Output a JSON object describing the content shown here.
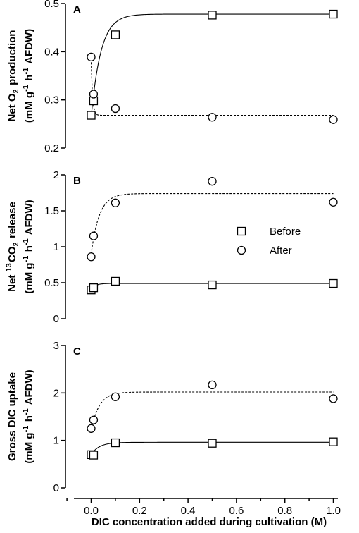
{
  "chart_data": [
    {
      "type": "scatter",
      "panel_label": "A",
      "ylabel_lines": [
        "Net O2 production",
        "(mM g-1 h-1 AFDW)"
      ],
      "ylim": [
        0.2,
        0.5
      ],
      "yticks": [
        0.2,
        0.3,
        0.4,
        0.5
      ],
      "ytick_labels": [
        "0.2",
        "0.3",
        "0.4",
        "0.5"
      ],
      "xlim": [
        -0.1,
        1.05
      ],
      "series": [
        {
          "name": "Before",
          "marker": "square",
          "line": "solid",
          "x": [
            0,
            0.01,
            0.1,
            0.5,
            1.0
          ],
          "y": [
            0.268,
            0.298,
            0.435,
            0.476,
            0.478
          ],
          "fit": {
            "a": 0.478,
            "b": 0.214,
            "k": 25
          }
        },
        {
          "name": "After",
          "marker": "circle",
          "line": "dashed",
          "x": [
            0,
            0.01,
            0.1,
            0.5,
            1.0
          ],
          "y": [
            0.389,
            0.312,
            0.282,
            0.264,
            0.259
          ],
          "fit": {
            "a": 0.268,
            "b": -0.11,
            "k": 180
          }
        }
      ]
    },
    {
      "type": "scatter",
      "panel_label": "B",
      "ylabel_lines": [
        "Net 13CO2 release",
        "(mM g-1 h-1 AFDW)"
      ],
      "ylim": [
        0,
        2
      ],
      "yticks": [
        0,
        0.5,
        1,
        1.5,
        2
      ],
      "ytick_labels": [
        "0",
        "0.5",
        "1",
        "1.5",
        "2"
      ],
      "xlim": [
        -0.1,
        1.05
      ],
      "series": [
        {
          "name": "Before",
          "marker": "square",
          "line": "solid",
          "x": [
            0,
            0.01,
            0.1,
            0.5,
            1.0
          ],
          "y": [
            0.4,
            0.43,
            0.52,
            0.47,
            0.49
          ],
          "fit": {
            "a": 0.49,
            "b": 0.09,
            "k": 60
          }
        },
        {
          "name": "After",
          "marker": "circle",
          "line": "dashed",
          "x": [
            0,
            0.01,
            0.1,
            0.5,
            1.0
          ],
          "y": [
            0.86,
            1.15,
            1.61,
            1.91,
            1.62
          ],
          "fit": {
            "a": 1.74,
            "b": 0.84,
            "k": 30
          }
        }
      ],
      "legend": {
        "position": "center-right",
        "entries": [
          "Before",
          "After"
        ]
      }
    },
    {
      "type": "scatter",
      "panel_label": "C",
      "ylabel_lines": [
        "Gross DIC uptake",
        "(mM g-1 h-1 AFDW)"
      ],
      "ylim": [
        0,
        3
      ],
      "yticks": [
        0,
        1,
        2,
        3
      ],
      "ytick_labels": [
        "0",
        "1",
        "2",
        "3"
      ],
      "xlim": [
        -0.1,
        1.05
      ],
      "xticks": [
        0.0,
        0.2,
        0.4,
        0.6,
        0.8,
        1.0
      ],
      "xtick_labels": [
        "0.0",
        "0.2",
        "0.4",
        "0.6",
        "0.8",
        "1.0"
      ],
      "xlabel": "DIC concentration added during  cultivation (M)",
      "series": [
        {
          "name": "Before",
          "marker": "square",
          "line": "solid",
          "x": [
            0,
            0.01,
            0.1,
            0.5,
            1.0
          ],
          "y": [
            0.7,
            0.69,
            0.95,
            0.94,
            0.97
          ],
          "fit": {
            "a": 0.96,
            "b": 0.26,
            "k": 30
          }
        },
        {
          "name": "After",
          "marker": "circle",
          "line": "dashed",
          "x": [
            0,
            0.01,
            0.1,
            0.5,
            1.0
          ],
          "y": [
            1.25,
            1.43,
            1.92,
            2.17,
            1.88
          ],
          "fit": {
            "a": 2.02,
            "b": 0.8,
            "k": 30
          }
        }
      ]
    }
  ]
}
